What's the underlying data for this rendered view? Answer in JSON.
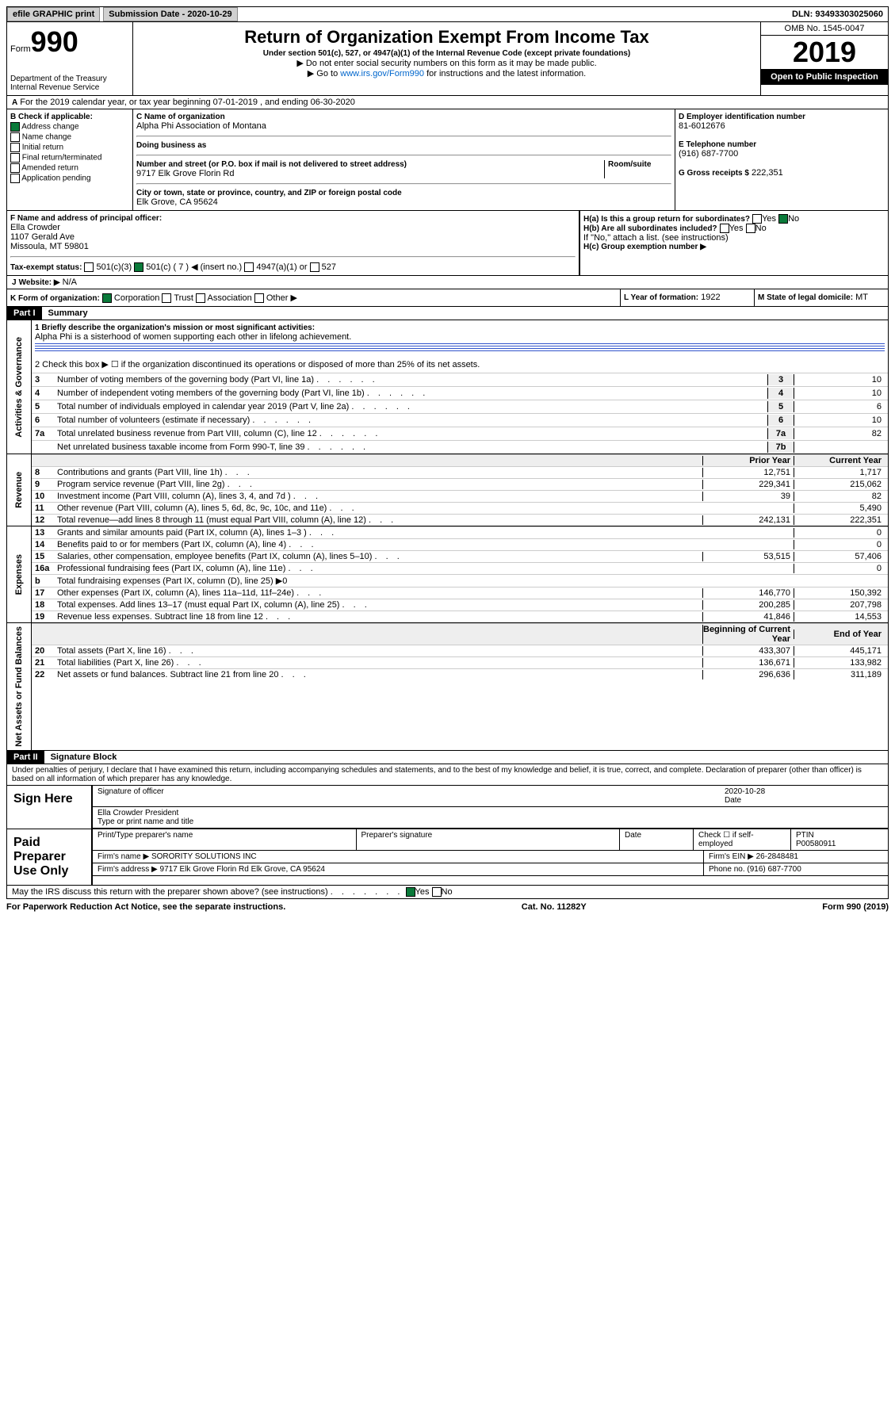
{
  "topbar": {
    "efile": "efile GRAPHIC print",
    "subdate_label": "Submission Date - 2020-10-29",
    "dln": "DLN: 93493303025060"
  },
  "header": {
    "form": "Form",
    "n990": "990",
    "dept": "Department of the Treasury\nInternal Revenue Service",
    "title": "Return of Organization Exempt From Income Tax",
    "sub1": "Under section 501(c), 527, or 4947(a)(1) of the Internal Revenue Code (except private foundations)",
    "sub2": "▶ Do not enter social security numbers on this form as it may be made public.",
    "sub3": "▶ Go to www.irs.gov/Form990 for instructions and the latest information.",
    "omb": "OMB No. 1545-0047",
    "year": "2019",
    "open": "Open to Public\nInspection"
  },
  "line_a": "For the 2019 calendar year, or tax year beginning 07-01-2019   , and ending 06-30-2020",
  "checkb": {
    "hdr": "B Check if applicable:",
    "address": "Address change",
    "name": "Name change",
    "initial": "Initial return",
    "final": "Final return/terminated",
    "amended": "Amended return",
    "app": "Application pending"
  },
  "c": {
    "name_lbl": "C Name of organization",
    "name": "Alpha Phi Association of Montana",
    "dba_lbl": "Doing business as",
    "dba": "",
    "street_lbl": "Number and street (or P.O. box if mail is not delivered to street address)",
    "room_lbl": "Room/suite",
    "street": "9717 Elk Grove Florin Rd",
    "city_lbl": "City or town, state or province, country, and ZIP or foreign postal code",
    "city": "Elk Grove, CA  95624"
  },
  "d": {
    "lbl": "D Employer identification number",
    "val": "81-6012676"
  },
  "e": {
    "lbl": "E Telephone number",
    "val": "(916) 687-7700"
  },
  "g": {
    "lbl": "G Gross receipts $",
    "val": "222,351"
  },
  "f": {
    "lbl": "F  Name and address of principal officer:",
    "name": "Ella Crowder",
    "addr1": "1107 Gerald Ave",
    "addr2": "Missoula, MT  59801"
  },
  "h": {
    "a": "H(a)  Is this a group return for subordinates?",
    "a_no": "No",
    "a_yes": "Yes",
    "b": "H(b)  Are all subordinates included?",
    "b_yes": "Yes",
    "b_no": "No",
    "b_note": "If \"No,\" attach a list. (see instructions)",
    "c": "H(c)  Group exemption number ▶"
  },
  "i": {
    "lbl": "Tax-exempt status:",
    "c3": "501(c)(3)",
    "c": "501(c) ( 7 ) ◀ (insert no.)",
    "a1": "4947(a)(1) or",
    "527": "527"
  },
  "j": {
    "lbl": "J",
    "website_lbl": "Website: ▶",
    "website": "N/A"
  },
  "k": {
    "lbl": "K Form of organization:",
    "corp": "Corporation",
    "trust": "Trust",
    "assoc": "Association",
    "other": "Other ▶"
  },
  "l": {
    "lbl": "L Year of formation:",
    "val": "1922"
  },
  "m": {
    "lbl": "M State of legal domicile:",
    "val": "MT"
  },
  "partI": {
    "hdr": "Part I",
    "title": "Summary"
  },
  "s1": {
    "q": "1  Briefly describe the organization's mission or most significant activities:",
    "a": "Alpha Phi is a sisterhood of women supporting each other in lifelong achievement."
  },
  "s2": "2    Check this box ▶ ☐  if the organization discontinued its operations or disposed of more than 25% of its net assets.",
  "lines_gov": [
    {
      "n": "3",
      "d": "Number of voting members of the governing body (Part VI, line 1a)",
      "box": "3",
      "v": "10"
    },
    {
      "n": "4",
      "d": "Number of independent voting members of the governing body (Part VI, line 1b)",
      "box": "4",
      "v": "10"
    },
    {
      "n": "5",
      "d": "Total number of individuals employed in calendar year 2019 (Part V, line 2a)",
      "box": "5",
      "v": "6"
    },
    {
      "n": "6",
      "d": "Total number of volunteers (estimate if necessary)",
      "box": "6",
      "v": "10"
    },
    {
      "n": "7a",
      "d": "Total unrelated business revenue from Part VIII, column (C), line 12",
      "box": "7a",
      "v": "82"
    },
    {
      "n": "",
      "d": "Net unrelated business taxable income from Form 990-T, line 39",
      "box": "7b",
      "v": ""
    }
  ],
  "colhdr": {
    "prior": "Prior Year",
    "current": "Current Year",
    "boy": "Beginning of Current Year",
    "eoy": "End of Year"
  },
  "lines_rev": [
    {
      "n": "8",
      "d": "Contributions and grants (Part VIII, line 1h)",
      "p": "12,751",
      "c": "1,717"
    },
    {
      "n": "9",
      "d": "Program service revenue (Part VIII, line 2g)",
      "p": "229,341",
      "c": "215,062"
    },
    {
      "n": "10",
      "d": "Investment income (Part VIII, column (A), lines 3, 4, and 7d )",
      "p": "39",
      "c": "82"
    },
    {
      "n": "11",
      "d": "Other revenue (Part VIII, column (A), lines 5, 6d, 8c, 9c, 10c, and 11e)",
      "p": "",
      "c": "5,490"
    },
    {
      "n": "12",
      "d": "Total revenue—add lines 8 through 11 (must equal Part VIII, column (A), line 12)",
      "p": "242,131",
      "c": "222,351"
    }
  ],
  "lines_exp": [
    {
      "n": "13",
      "d": "Grants and similar amounts paid (Part IX, column (A), lines 1–3 )",
      "p": "",
      "c": "0"
    },
    {
      "n": "14",
      "d": "Benefits paid to or for members (Part IX, column (A), line 4)",
      "p": "",
      "c": "0"
    },
    {
      "n": "15",
      "d": "Salaries, other compensation, employee benefits (Part IX, column (A), lines 5–10)",
      "p": "53,515",
      "c": "57,406"
    },
    {
      "n": "16a",
      "d": "Professional fundraising fees (Part IX, column (A), line 11e)",
      "p": "",
      "c": "0"
    },
    {
      "n": "b",
      "d": "Total fundraising expenses (Part IX, column (D), line 25) ▶0",
      "p": "—",
      "c": "—"
    },
    {
      "n": "17",
      "d": "Other expenses (Part IX, column (A), lines 11a–11d, 11f–24e)",
      "p": "146,770",
      "c": "150,392"
    },
    {
      "n": "18",
      "d": "Total expenses. Add lines 13–17 (must equal Part IX, column (A), line 25)",
      "p": "200,285",
      "c": "207,798"
    },
    {
      "n": "19",
      "d": "Revenue less expenses. Subtract line 18 from line 12",
      "p": "41,846",
      "c": "14,553"
    }
  ],
  "lines_net": [
    {
      "n": "20",
      "d": "Total assets (Part X, line 16)",
      "p": "433,307",
      "c": "445,171"
    },
    {
      "n": "21",
      "d": "Total liabilities (Part X, line 26)",
      "p": "136,671",
      "c": "133,982"
    },
    {
      "n": "22",
      "d": "Net assets or fund balances. Subtract line 21 from line 20",
      "p": "296,636",
      "c": "311,189"
    }
  ],
  "partII": {
    "hdr": "Part II",
    "title": "Signature Block"
  },
  "perjury": "Under penalties of perjury, I declare that I have examined this return, including accompanying schedules and statements, and to the best of my knowledge and belief, it is true, correct, and complete. Declaration of preparer (other than officer) is based on all information of which preparer has any knowledge.",
  "sign": {
    "side": "Sign Here",
    "sig_lbl": "Signature of officer",
    "date": "2020-10-28",
    "date_lbl": "Date",
    "name": "Ella Crowder President",
    "name_lbl": "Type or print name and title"
  },
  "paid": {
    "side": "Paid Preparer Use Only",
    "h1": "Print/Type preparer's name",
    "h2": "Preparer's signature",
    "h3": "Date",
    "h4": "Check ☐ if self-employed",
    "h5": "PTIN",
    "ptin": "P00580911",
    "firm_lbl": "Firm's name   ▶",
    "firm": "SORORITY SOLUTIONS INC",
    "ein_lbl": "Firm's EIN ▶",
    "ein": "26-2848481",
    "addr_lbl": "Firm's address ▶",
    "addr": "9717 Elk Grove Florin Rd\nElk Grove, CA  95624",
    "phone_lbl": "Phone no.",
    "phone": "(916) 687-7700"
  },
  "discuss": "May the IRS discuss this return with the preparer shown above? (see instructions)",
  "discuss_yes": "Yes",
  "discuss_no": "No",
  "footer": {
    "pra": "For Paperwork Reduction Act Notice, see the separate instructions.",
    "cat": "Cat. No. 11282Y",
    "form": "Form 990 (2019)"
  },
  "sidelabels": {
    "gov": "Activities & Governance",
    "rev": "Revenue",
    "exp": "Expenses",
    "net": "Net Assets or Fund Balances"
  }
}
